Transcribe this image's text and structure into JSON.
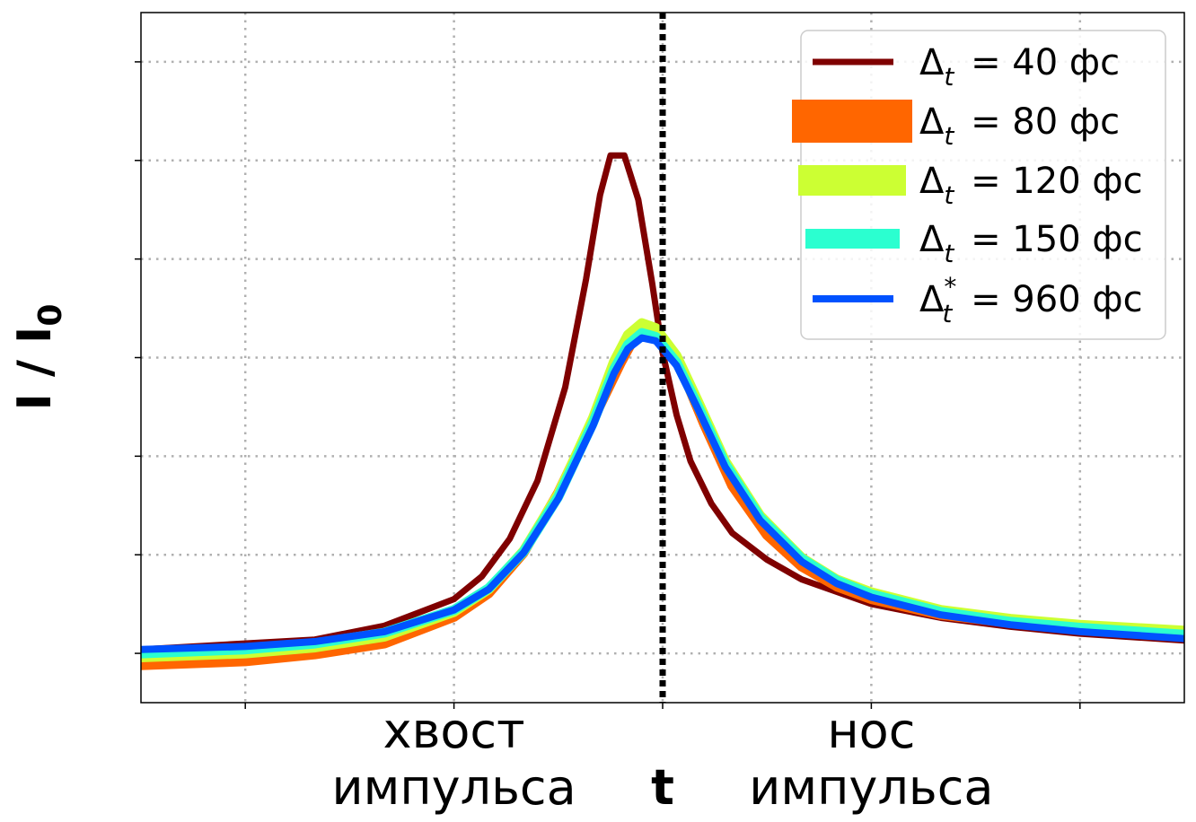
{
  "chart_data": {
    "type": "line",
    "ylabel": "I / I",
    "ylabel_sub": "0",
    "xlabel": "t",
    "x_tick_labels": [
      {
        "line1": "хвост",
        "line2": "импульса",
        "x": -3
      },
      {
        "line1": "нос",
        "line2": "импульса",
        "x": 3
      }
    ],
    "x_marker": 0,
    "xlim": [
      -7.5,
      7.5
    ],
    "ylim": [
      -0.5,
      6.5
    ],
    "x_ticks": [
      -6,
      -3,
      0,
      3,
      6
    ],
    "y_ticks": [
      0,
      1,
      2,
      3,
      4,
      5,
      6
    ],
    "grid": true,
    "legend_position": "top-right",
    "series": [
      {
        "name": "Δ",
        "sub": "t",
        "sup": "",
        "value": "= 40 фс",
        "color": "#7f0000",
        "legend_stroke": 7,
        "x": [
          -7.5,
          -5,
          -4,
          -3,
          -2.6,
          -2.2,
          -1.8,
          -1.4,
          -1.1,
          -0.9,
          -0.75,
          -0.55,
          -0.35,
          -0.15,
          0,
          0.2,
          0.4,
          0.7,
          1,
          1.5,
          2,
          3,
          4,
          5,
          6,
          7.5
        ],
        "y": [
          0.04,
          0.14,
          0.28,
          0.55,
          0.78,
          1.16,
          1.75,
          2.7,
          3.8,
          4.65,
          5.05,
          5.05,
          4.6,
          3.75,
          3.05,
          2.42,
          1.95,
          1.52,
          1.22,
          0.95,
          0.75,
          0.5,
          0.36,
          0.27,
          0.2,
          0.13
        ]
      },
      {
        "name": "Δ",
        "sub": "t",
        "sup": "",
        "value": "= 80 фс",
        "color": "#ff6600",
        "legend_stroke": 48,
        "x": [
          -7.5,
          -6,
          -5,
          -4,
          -3,
          -2.5,
          -2,
          -1.5,
          -1,
          -0.6,
          -0.4,
          -0.2,
          0,
          0.3,
          0.6,
          1,
          1.5,
          2,
          2.5,
          3,
          4,
          5,
          6,
          7.5
        ],
        "y": [
          -0.12,
          -0.08,
          -0.01,
          0.1,
          0.37,
          0.61,
          1.02,
          1.63,
          2.37,
          2.95,
          3.21,
          3.3,
          3.2,
          2.83,
          2.32,
          1.7,
          1.2,
          0.88,
          0.68,
          0.55,
          0.39,
          0.31,
          0.26,
          0.22
        ]
      },
      {
        "name": "Δ",
        "sub": "t",
        "sup": "",
        "value": "= 120 фс",
        "color": "#ccff33",
        "legend_stroke": 34,
        "x": [
          -7.5,
          -6,
          -5,
          -4,
          -3,
          -2.5,
          -2,
          -1.5,
          -1,
          -0.7,
          -0.5,
          -0.3,
          -0.1,
          0.2,
          0.5,
          0.9,
          1.4,
          2,
          2.5,
          3,
          4,
          5,
          6,
          7.5
        ],
        "y": [
          -0.04,
          0,
          0.06,
          0.17,
          0.42,
          0.65,
          1.04,
          1.62,
          2.39,
          2.96,
          3.23,
          3.35,
          3.3,
          3.02,
          2.57,
          1.95,
          1.4,
          0.97,
          0.75,
          0.62,
          0.44,
          0.35,
          0.29,
          0.23
        ]
      },
      {
        "name": "Δ",
        "sub": "t",
        "sup": "",
        "value": "= 150 фс",
        "color": "#2bffd0",
        "legend_stroke": 22,
        "x": [
          -7.5,
          -6,
          -5,
          -4,
          -3,
          -2.5,
          -2,
          -1.5,
          -1,
          -0.7,
          -0.5,
          -0.3,
          -0.1,
          0.2,
          0.5,
          0.9,
          1.4,
          2,
          2.5,
          3,
          4,
          5,
          6,
          7.5
        ],
        "y": [
          0,
          0.04,
          0.1,
          0.21,
          0.44,
          0.66,
          1.03,
          1.59,
          2.34,
          2.88,
          3.13,
          3.25,
          3.21,
          2.95,
          2.52,
          1.92,
          1.38,
          0.96,
          0.74,
          0.6,
          0.42,
          0.32,
          0.26,
          0.19
        ]
      },
      {
        "name": "Δ",
        "sub": "t",
        "sup": "*",
        "value": "= 960 фс",
        "color": "#0052ff",
        "legend_stroke": 8,
        "x": [
          -7.5,
          -6,
          -5,
          -4,
          -3,
          -2.5,
          -2,
          -1.5,
          -1,
          -0.7,
          -0.5,
          -0.3,
          -0.1,
          0.2,
          0.5,
          0.9,
          1.4,
          2,
          2.5,
          3,
          4,
          5,
          6,
          7.5
        ],
        "y": [
          0.04,
          0.07,
          0.12,
          0.22,
          0.44,
          0.65,
          1.02,
          1.57,
          2.31,
          2.84,
          3.09,
          3.2,
          3.17,
          2.92,
          2.49,
          1.89,
          1.35,
          0.93,
          0.71,
          0.57,
          0.39,
          0.29,
          0.22,
          0.15
        ]
      }
    ]
  }
}
